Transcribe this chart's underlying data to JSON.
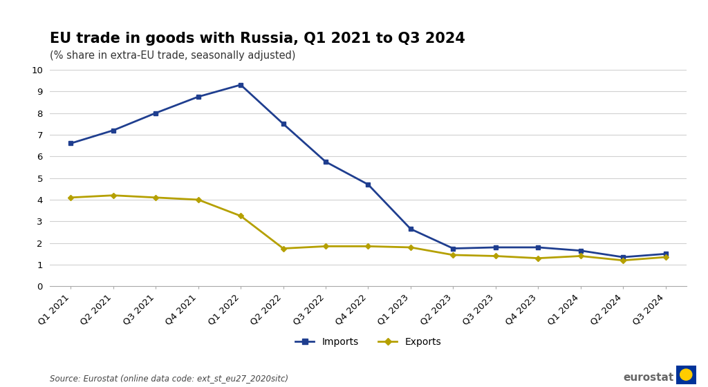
{
  "title": "EU trade in goods with Russia, Q1 2021 to Q3 2024",
  "subtitle": "(% share in extra-EU trade, seasonally adjusted)",
  "source_text": "Source: Eurostat (online data code: ext_st_eu27_2020sitc)",
  "categories": [
    "Q1 2021",
    "Q2 2021",
    "Q3 2021",
    "Q4 2021",
    "Q1 2022",
    "Q2 2022",
    "Q3 2022",
    "Q4 2022",
    "Q1 2023",
    "Q2 2023",
    "Q3 2023",
    "Q4 2023",
    "Q1 2024",
    "Q2 2024",
    "Q3 2024"
  ],
  "imports": [
    6.6,
    7.2,
    8.0,
    8.75,
    9.3,
    7.5,
    5.75,
    4.7,
    2.65,
    1.75,
    1.8,
    1.8,
    1.65,
    1.35,
    1.5
  ],
  "exports": [
    4.1,
    4.2,
    4.1,
    4.0,
    3.25,
    1.75,
    1.85,
    1.85,
    1.8,
    1.45,
    1.4,
    1.3,
    1.4,
    1.2,
    1.35
  ],
  "imports_color": "#1f3e8f",
  "exports_color": "#b5a000",
  "background_color": "#ffffff",
  "ylim": [
    0,
    10
  ],
  "yticks": [
    0,
    1,
    2,
    3,
    4,
    5,
    6,
    7,
    8,
    9,
    10
  ],
  "grid_color": "#d0d0d0",
  "title_fontsize": 15,
  "subtitle_fontsize": 10.5,
  "tick_fontsize": 9.5,
  "legend_fontsize": 10,
  "source_fontsize": 8.5
}
